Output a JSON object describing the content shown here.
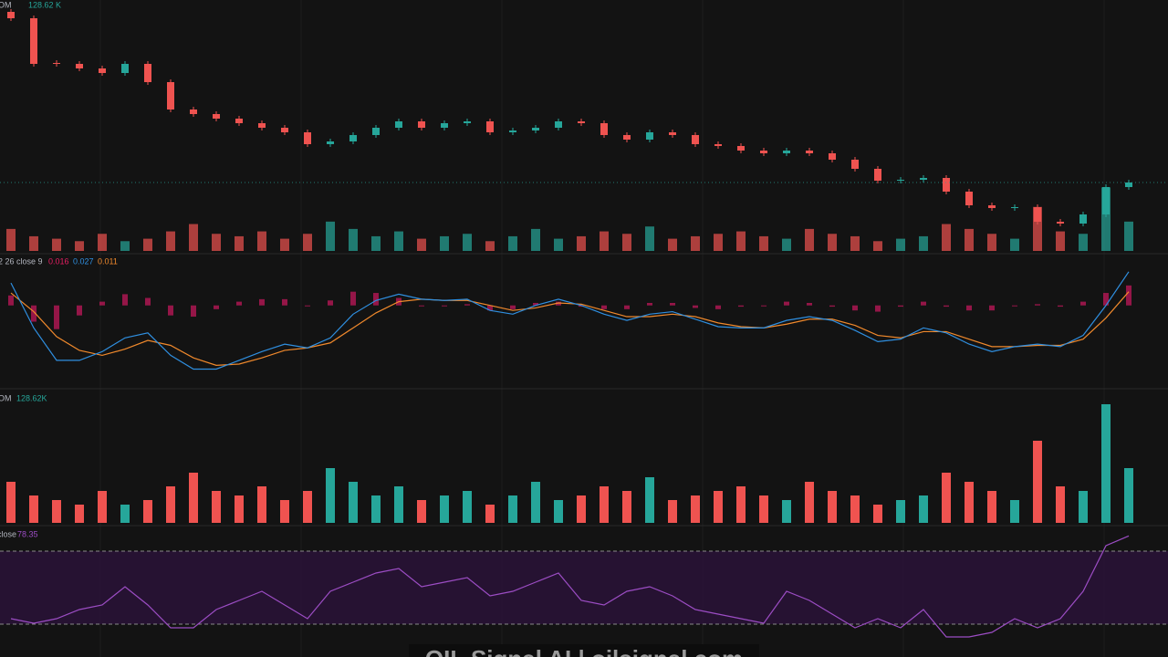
{
  "chart_data": [
    {
      "type": "candlestick",
      "legend_label": "OM",
      "legend_value": "128.62 K",
      "up_color": "#26a69a",
      "down_color": "#ef5350",
      "ylim": [
        0,
        275
      ],
      "open": [
        262,
        255,
        206,
        205,
        200,
        195,
        205,
        185,
        155,
        150,
        145,
        140,
        135,
        130,
        117,
        120,
        127,
        135,
        142,
        135,
        140,
        142,
        130,
        132,
        135,
        142,
        140,
        127,
        122,
        130,
        127,
        117,
        115,
        110,
        107,
        110,
        107,
        100,
        90,
        77,
        78,
        80,
        65,
        50,
        47,
        48,
        32,
        30,
        40,
        70
      ],
      "high": [
        265,
        258,
        209,
        208,
        203,
        208,
        208,
        188,
        158,
        153,
        148,
        143,
        138,
        133,
        123,
        130,
        138,
        145,
        145,
        143,
        145,
        145,
        135,
        138,
        145,
        145,
        143,
        130,
        133,
        133,
        130,
        120,
        118,
        113,
        113,
        113,
        110,
        103,
        93,
        81,
        83,
        83,
        68,
        53,
        51,
        51,
        35,
        43,
        73,
        78
      ],
      "low": [
        252,
        202,
        202,
        197,
        192,
        192,
        182,
        152,
        147,
        142,
        137,
        132,
        127,
        114,
        114,
        117,
        124,
        132,
        132,
        132,
        137,
        127,
        127,
        129,
        132,
        137,
        124,
        119,
        119,
        124,
        114,
        112,
        107,
        104,
        104,
        104,
        97,
        87,
        74,
        74,
        75,
        62,
        47,
        44,
        44,
        29,
        27,
        27,
        37,
        67
      ],
      "close": [
        255,
        205,
        205,
        200,
        195,
        205,
        185,
        155,
        150,
        145,
        140,
        135,
        130,
        117,
        120,
        127,
        135,
        142,
        135,
        140,
        142,
        130,
        132,
        135,
        142,
        140,
        127,
        122,
        130,
        127,
        117,
        115,
        110,
        107,
        110,
        107,
        100,
        90,
        77,
        78,
        80,
        65,
        50,
        47,
        48,
        32,
        30,
        40,
        70,
        75
      ]
    },
    {
      "type": "macd",
      "legend_label": "2 26 close 9",
      "ylim": [
        -0.066,
        0.04
      ],
      "macd_color": "#2f8fe0",
      "signal_color": "#f0892c",
      "histogram_color": "#c2185b",
      "macd": [
        0.018,
        -0.018,
        -0.044,
        -0.044,
        -0.037,
        -0.026,
        -0.022,
        -0.04,
        -0.051,
        -0.051,
        -0.044,
        -0.037,
        -0.031,
        -0.034,
        -0.026,
        -0.007,
        0.004,
        0.009,
        0.005,
        0.004,
        0.005,
        -0.004,
        -0.007,
        0,
        0.005,
        0,
        -0.007,
        -0.012,
        -0.007,
        -0.005,
        -0.011,
        -0.017,
        -0.018,
        -0.018,
        -0.012,
        -0.009,
        -0.012,
        -0.02,
        -0.029,
        -0.027,
        -0.018,
        -0.022,
        -0.031,
        -0.037,
        -0.033,
        -0.031,
        -0.033,
        -0.024,
        0,
        0.027
      ],
      "signal": [
        0.01,
        -0.005,
        -0.025,
        -0.036,
        -0.04,
        -0.035,
        -0.028,
        -0.032,
        -0.042,
        -0.048,
        -0.047,
        -0.042,
        -0.036,
        -0.034,
        -0.03,
        -0.018,
        -0.006,
        0.003,
        0.005,
        0.004,
        0.004,
        0,
        -0.004,
        -0.002,
        0.002,
        0.001,
        -0.004,
        -0.009,
        -0.009,
        -0.007,
        -0.009,
        -0.014,
        -0.017,
        -0.018,
        -0.015,
        -0.011,
        -0.011,
        -0.016,
        -0.024,
        -0.026,
        -0.021,
        -0.021,
        -0.027,
        -0.033,
        -0.033,
        -0.032,
        -0.032,
        -0.027,
        -0.01,
        0.011
      ],
      "histogram": [
        0.008,
        -0.013,
        -0.019,
        -0.008,
        0.003,
        0.009,
        0.006,
        -0.008,
        -0.009,
        -0.003,
        0.003,
        0.005,
        0.005,
        0,
        0.004,
        0.011,
        0.01,
        0.006,
        0,
        0,
        0.001,
        -0.004,
        -0.003,
        0.002,
        0.003,
        -0.001,
        -0.003,
        -0.003,
        0.002,
        0.002,
        -0.002,
        -0.003,
        -0.001,
        0,
        0.003,
        0.002,
        -0.001,
        -0.004,
        -0.005,
        -0.001,
        0.003,
        -0.001,
        -0.004,
        -0.004,
        0,
        0.001,
        -0.001,
        0.003,
        0.01,
        0.016
      ]
    },
    {
      "type": "bar",
      "legend_label": "OM",
      "legend_value": "128.62K",
      "ylim": [
        0,
        140
      ],
      "values": [
        45,
        30,
        25,
        20,
        35,
        20,
        25,
        40,
        55,
        35,
        30,
        40,
        25,
        35,
        60,
        45,
        30,
        40,
        25,
        30,
        35,
        20,
        30,
        45,
        25,
        30,
        40,
        35,
        50,
        25,
        30,
        35,
        40,
        30,
        25,
        45,
        35,
        30,
        20,
        25,
        30,
        55,
        45,
        35,
        25,
        90,
        40,
        35,
        130,
        60
      ]
    },
    {
      "type": "line",
      "legend_label": "close",
      "ylim": [
        13,
        83
      ],
      "bands": [
        30,
        70
      ],
      "color": "#9c4dc4",
      "band_fill": "#2a1338",
      "values": [
        33,
        30.5,
        33,
        38,
        40.5,
        50.5,
        40.5,
        28,
        28,
        38,
        43,
        48,
        40.5,
        33,
        48,
        53,
        58,
        60.5,
        50.5,
        53,
        55.5,
        45.5,
        48,
        53,
        58,
        43,
        40.5,
        48,
        50.5,
        45.5,
        38,
        35.5,
        33,
        30.5,
        48,
        43,
        35.5,
        28,
        33,
        28,
        38,
        23,
        23,
        25.5,
        33,
        28,
        33,
        48,
        73,
        78.35
      ]
    }
  ],
  "watermark": "OIL Signal AI | oilsignal.com"
}
